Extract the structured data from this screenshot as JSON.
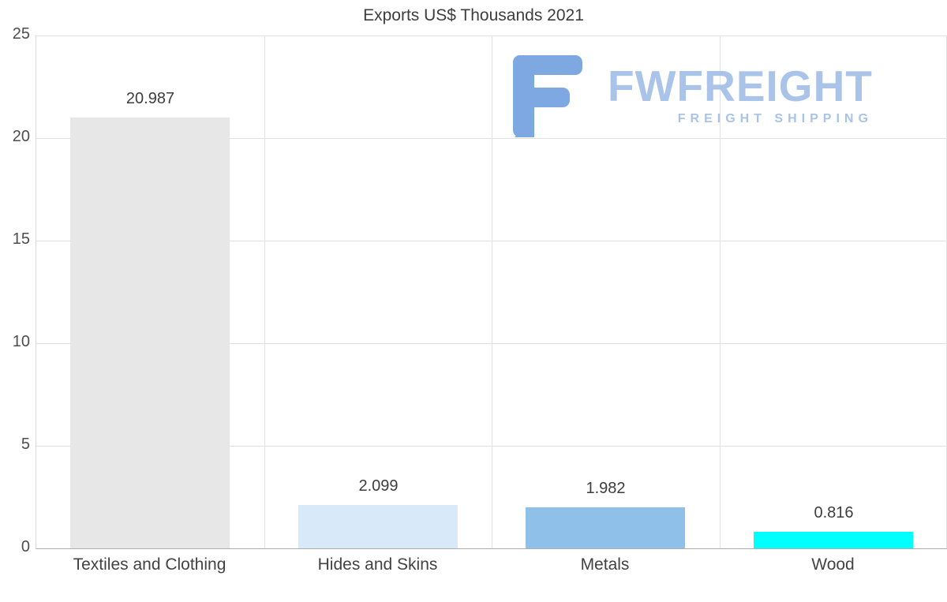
{
  "title": "Exports US$ Thousands 2021",
  "logo": {
    "brand": "FWFREIGHT",
    "tagline": "FREIGHT SHIPPING",
    "mark_color": "#7da8e2",
    "text_color": "#a9c3e9"
  },
  "colors": {
    "grid": "#e0e0e0",
    "axis": "#adadad",
    "tick_text": "#4d4d4d",
    "label_text": "#3d3d3d"
  },
  "chart_data": {
    "type": "bar",
    "title": "Exports US$ Thousands 2021",
    "categories": [
      "Textiles and Clothing",
      "Hides and Skins",
      "Metals",
      "Wood"
    ],
    "values": [
      20.987,
      2.099,
      1.982,
      0.816
    ],
    "value_labels": [
      "20.987",
      "2.099",
      "1.982",
      "0.816"
    ],
    "bar_colors": [
      "#e7e7e7",
      "#d8e9fa",
      "#8fc0e9",
      "#00ffff"
    ],
    "xlabel": "",
    "ylabel": "",
    "ylim": [
      0,
      25
    ],
    "yticks": [
      0,
      5,
      10,
      15,
      20,
      25
    ],
    "grid": true,
    "legend": "none"
  }
}
